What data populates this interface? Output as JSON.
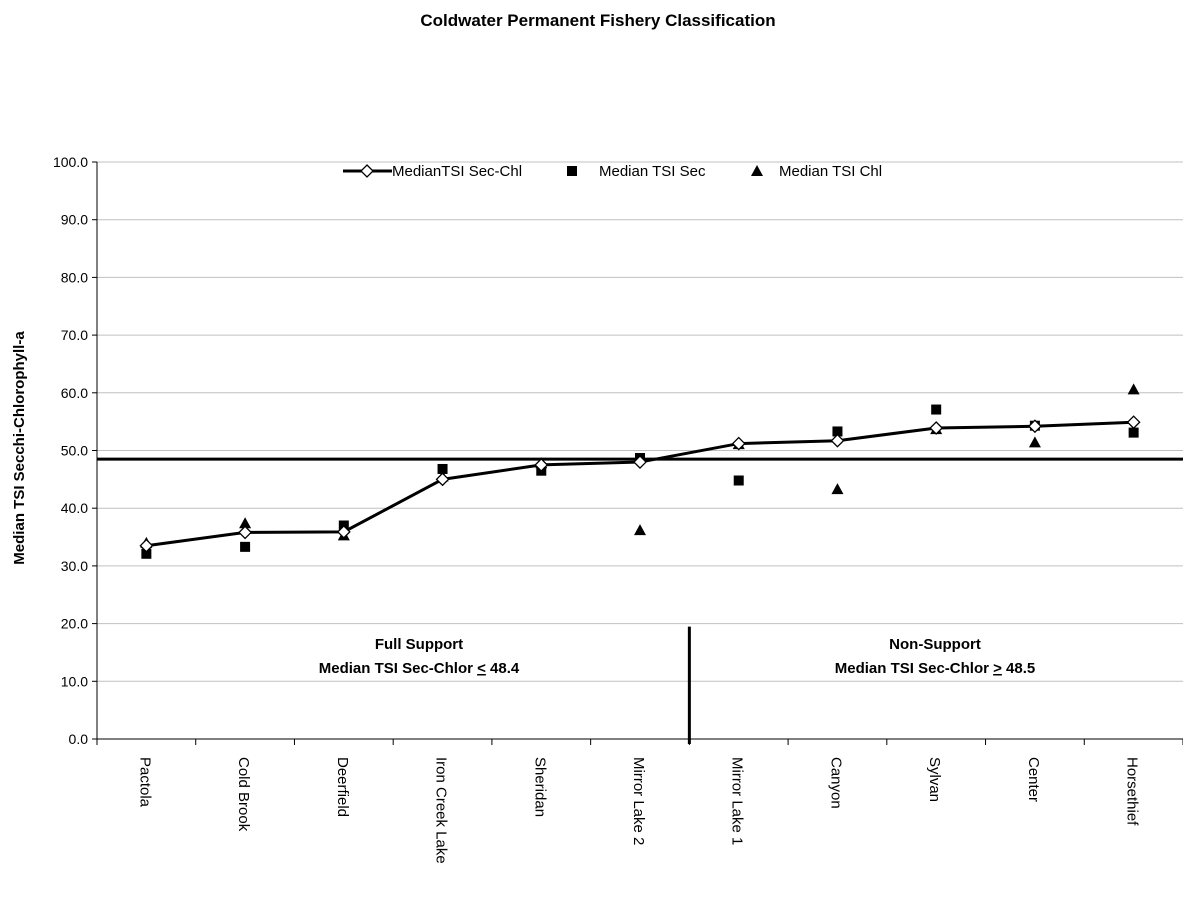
{
  "chart_data": {
    "type": "line",
    "title": "Coldwater Permanent Fishery Classification",
    "xlabel": "",
    "ylabel": "Median TSI Secchi-Chlorophyll-a",
    "ylim": [
      0,
      100
    ],
    "ytick_step": 10,
    "ytick_labels": [
      "0.0",
      "10.0",
      "20.0",
      "30.0",
      "40.0",
      "50.0",
      "60.0",
      "70.0",
      "80.0",
      "90.0",
      "100.0"
    ],
    "grid": true,
    "legend_position": "top",
    "categories": [
      "Pactola",
      "Cold Brook",
      "Deerfield",
      "Iron Creek Lake",
      "Sheridan",
      "Mirror Lake 2",
      "Mirror Lake 1",
      "Canyon",
      "Sylvan",
      "Center",
      "Horsethief"
    ],
    "series": [
      {
        "name": "MedianTSI Sec-Chl",
        "marker": "diamond-open",
        "line": true,
        "values": [
          33.5,
          35.8,
          35.9,
          45.0,
          47.5,
          48.0,
          51.2,
          51.7,
          53.9,
          54.2,
          54.9
        ]
      },
      {
        "name": "Median TSI Sec",
        "marker": "square",
        "line": false,
        "values": [
          32.1,
          33.3,
          37.0,
          46.8,
          46.5,
          48.7,
          44.8,
          53.3,
          57.1,
          54.3,
          53.1
        ]
      },
      {
        "name": "Median TSI Chl",
        "marker": "triangle",
        "line": false,
        "values": [
          34.0,
          37.4,
          35.3,
          45.5,
          47.8,
          36.2,
          51.1,
          43.3,
          53.7,
          51.4,
          60.6
        ]
      }
    ],
    "reference_line": {
      "value": 48.5
    },
    "zones": [
      {
        "name": "Full Support",
        "criterion_prefix": "Median TSI Sec-Chlor ",
        "criterion_operator": "<",
        "criterion_value": "48.4"
      },
      {
        "name": "Non-Support",
        "criterion_prefix": "Median TSI Sec-Chlor ",
        "criterion_operator": ">",
        "criterion_value": "48.5"
      }
    ],
    "divider_after_category": "Mirror Lake 2",
    "colors": {
      "line": "#000000",
      "marker": "#000000",
      "grid": "#c0c0c0",
      "background": "#ffffff"
    }
  }
}
